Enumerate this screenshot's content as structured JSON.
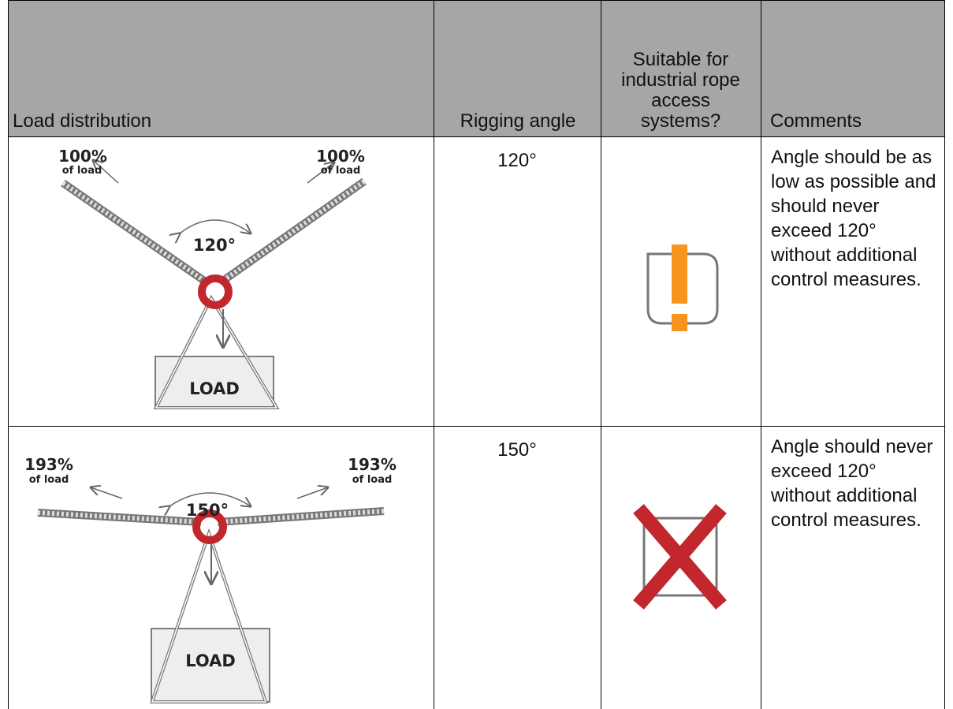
{
  "table": {
    "headers": [
      "Load distribution",
      "Rigging angle",
      "Suitable for industrial rope access systems?",
      "Comments"
    ],
    "rows": [
      {
        "diagram": {
          "left_percent": "100%",
          "left_note": "of load",
          "right_percent": "100%",
          "right_note": "of load",
          "angle": "120°",
          "box": "LOAD"
        },
        "rigging_angle": "120°",
        "comment": "Angle should be as low as possible and should never exceed 120° without additional control measures."
      },
      {
        "diagram": {
          "left_percent": "193%",
          "left_note": "of load",
          "right_percent": "193%",
          "right_note": "of load",
          "angle": "150°",
          "box": "LOAD"
        },
        "rigging_angle": "150°",
        "comment": "Angle should never exceed 120° without additional control measures."
      }
    ]
  }
}
